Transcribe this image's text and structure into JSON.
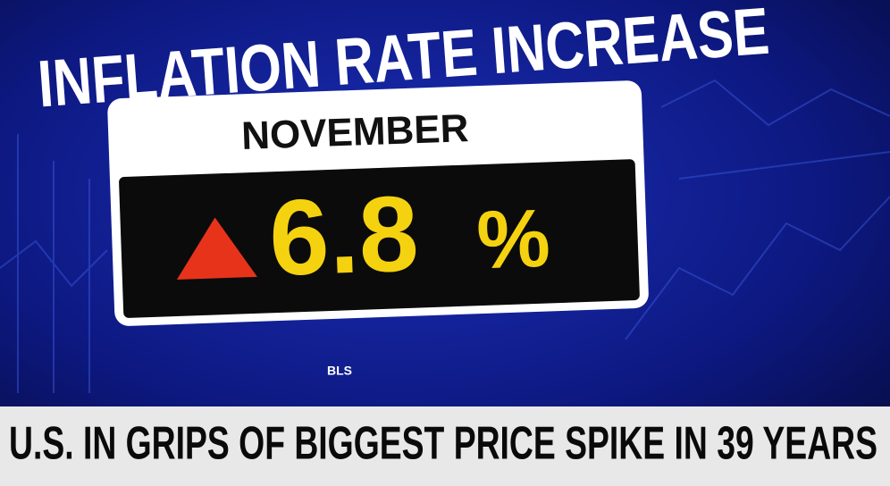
{
  "title": "INFLATION RATE INCREASE",
  "card": {
    "month": "NOVEMBER",
    "value": 6.8,
    "unit": "%"
  },
  "source": "BLS",
  "banner": "U.S. IN GRIPS OF BIGGEST PRICE SPIKE IN 39 YEARS"
}
